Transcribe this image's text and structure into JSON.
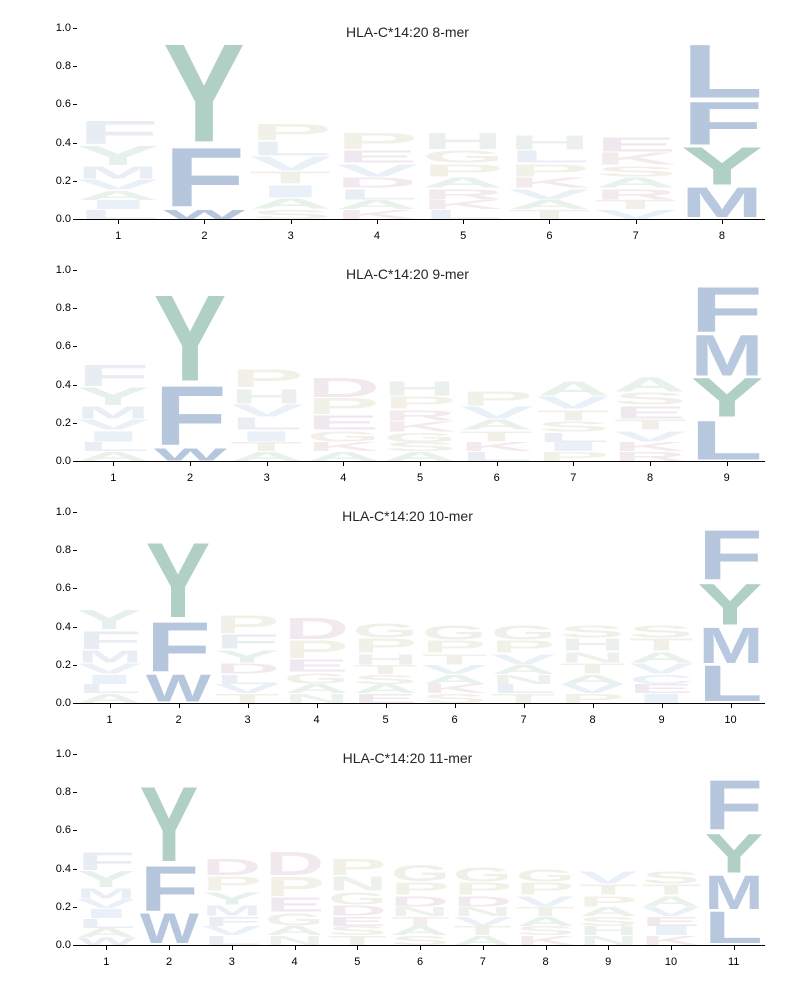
{
  "ylim": [
    0,
    1.0
  ],
  "yticks": [
    0.0,
    0.2,
    0.4,
    0.6,
    0.8,
    1.0
  ],
  "tick_fontsize": 11,
  "title_fontsize": 14,
  "title_color": "#262626",
  "background_color": "#ffffff",
  "aa_colors": {
    "A": "#bad4c0",
    "C": "#bcd0e8",
    "D": "#d6b8cc",
    "E": "#cbb4cd",
    "F": "#b6c7dd",
    "G": "#d0d0b8",
    "H": "#bed1c3",
    "I": "#bacfe5",
    "K": "#d6bcc0",
    "L": "#b7c8de",
    "M": "#b8c9df",
    "N": "#c4d4c3",
    "P": "#d3d2b4",
    "Q": "#c3d3c2",
    "R": "#d7bdc1",
    "S": "#cfcfb7",
    "T": "#cfcfb7",
    "V": "#bacfe5",
    "W": "#b6c7dd",
    "Y": "#b0d0c5"
  },
  "anchor_opacity": 1.0,
  "nonanchor_opacity": 0.3,
  "panels": [
    {
      "title": "HLA-C*14:20 8-mer",
      "positions": 8,
      "anchors": [
        2,
        8
      ],
      "columns": [
        [
          [
            "F",
            0.13
          ],
          [
            "Y",
            0.11
          ],
          [
            "M",
            0.07
          ],
          [
            "V",
            0.06
          ],
          [
            "A",
            0.05
          ],
          [
            "I",
            0.05
          ],
          [
            "L",
            0.05
          ]
        ],
        [
          [
            "Y",
            0.55
          ],
          [
            "F",
            0.33
          ],
          [
            "W",
            0.05
          ]
        ],
        [
          [
            "P",
            0.09
          ],
          [
            "L",
            0.08
          ],
          [
            "V",
            0.08
          ],
          [
            "T",
            0.07
          ],
          [
            "I",
            0.07
          ],
          [
            "A",
            0.06
          ],
          [
            "S",
            0.05
          ]
        ],
        [
          [
            "P",
            0.09
          ],
          [
            "E",
            0.07
          ],
          [
            "V",
            0.07
          ],
          [
            "D",
            0.06
          ],
          [
            "L",
            0.06
          ],
          [
            "A",
            0.05
          ],
          [
            "K",
            0.05
          ]
        ],
        [
          [
            "H",
            0.09
          ],
          [
            "G",
            0.07
          ],
          [
            "P",
            0.07
          ],
          [
            "A",
            0.06
          ],
          [
            "R",
            0.06
          ],
          [
            "K",
            0.05
          ],
          [
            "L",
            0.05
          ]
        ],
        [
          [
            "H",
            0.08
          ],
          [
            "L",
            0.07
          ],
          [
            "P",
            0.07
          ],
          [
            "K",
            0.06
          ],
          [
            "V",
            0.06
          ],
          [
            "A",
            0.05
          ],
          [
            "T",
            0.05
          ]
        ],
        [
          [
            "E",
            0.08
          ],
          [
            "K",
            0.07
          ],
          [
            "S",
            0.06
          ],
          [
            "A",
            0.06
          ],
          [
            "R",
            0.06
          ],
          [
            "T",
            0.05
          ],
          [
            "V",
            0.05
          ]
        ],
        [
          [
            "L",
            0.3
          ],
          [
            "F",
            0.24
          ],
          [
            "Y",
            0.21
          ],
          [
            "M",
            0.17
          ]
        ]
      ]
    },
    {
      "title": "HLA-C*14:20 9-mer",
      "positions": 9,
      "anchors": [
        2,
        9
      ],
      "columns": [
        [
          [
            "F",
            0.12
          ],
          [
            "Y",
            0.1
          ],
          [
            "M",
            0.07
          ],
          [
            "V",
            0.06
          ],
          [
            "I",
            0.06
          ],
          [
            "L",
            0.05
          ],
          [
            "A",
            0.05
          ]
        ],
        [
          [
            "Y",
            0.48
          ],
          [
            "F",
            0.33
          ],
          [
            "W",
            0.07
          ]
        ],
        [
          [
            "P",
            0.1
          ],
          [
            "H",
            0.08
          ],
          [
            "V",
            0.07
          ],
          [
            "L",
            0.07
          ],
          [
            "I",
            0.06
          ],
          [
            "T",
            0.05
          ],
          [
            "A",
            0.05
          ]
        ],
        [
          [
            "D",
            0.11
          ],
          [
            "P",
            0.09
          ],
          [
            "E",
            0.08
          ],
          [
            "G",
            0.06
          ],
          [
            "K",
            0.05
          ],
          [
            "A",
            0.05
          ]
        ],
        [
          [
            "H",
            0.08
          ],
          [
            "P",
            0.07
          ],
          [
            "R",
            0.06
          ],
          [
            "K",
            0.06
          ],
          [
            "G",
            0.05
          ],
          [
            "S",
            0.05
          ],
          [
            "A",
            0.05
          ]
        ],
        [
          [
            "P",
            0.08
          ],
          [
            "V",
            0.07
          ],
          [
            "A",
            0.06
          ],
          [
            "T",
            0.06
          ],
          [
            "K",
            0.05
          ],
          [
            "L",
            0.05
          ]
        ],
        [
          [
            "A",
            0.08
          ],
          [
            "V",
            0.07
          ],
          [
            "T",
            0.06
          ],
          [
            "S",
            0.06
          ],
          [
            "L",
            0.05
          ],
          [
            "I",
            0.05
          ],
          [
            "P",
            0.05
          ]
        ],
        [
          [
            "A",
            0.08
          ],
          [
            "S",
            0.07
          ],
          [
            "E",
            0.07
          ],
          [
            "T",
            0.06
          ],
          [
            "V",
            0.06
          ],
          [
            "K",
            0.05
          ],
          [
            "R",
            0.05
          ]
        ],
        [
          [
            "F",
            0.25
          ],
          [
            "M",
            0.23
          ],
          [
            "Y",
            0.22
          ],
          [
            "L",
            0.22
          ]
        ]
      ]
    },
    {
      "title": "HLA-C*14:20 10-mer",
      "positions": 10,
      "anchors": [
        2,
        10
      ],
      "columns": [
        [
          [
            "Y",
            0.11
          ],
          [
            "F",
            0.1
          ],
          [
            "M",
            0.07
          ],
          [
            "V",
            0.06
          ],
          [
            "I",
            0.05
          ],
          [
            "L",
            0.05
          ],
          [
            "A",
            0.05
          ]
        ],
        [
          [
            "Y",
            0.42
          ],
          [
            "F",
            0.28
          ],
          [
            "W",
            0.15
          ]
        ],
        [
          [
            "P",
            0.1
          ],
          [
            "F",
            0.08
          ],
          [
            "Y",
            0.07
          ],
          [
            "D",
            0.06
          ],
          [
            "L",
            0.05
          ],
          [
            "V",
            0.05
          ],
          [
            "T",
            0.05
          ]
        ],
        [
          [
            "D",
            0.12
          ],
          [
            "P",
            0.1
          ],
          [
            "E",
            0.07
          ],
          [
            "G",
            0.06
          ],
          [
            "A",
            0.05
          ],
          [
            "N",
            0.05
          ]
        ],
        [
          [
            "G",
            0.08
          ],
          [
            "P",
            0.08
          ],
          [
            "H",
            0.06
          ],
          [
            "T",
            0.05
          ],
          [
            "S",
            0.05
          ],
          [
            "A",
            0.05
          ],
          [
            "E",
            0.05
          ]
        ],
        [
          [
            "G",
            0.08
          ],
          [
            "P",
            0.07
          ],
          [
            "T",
            0.06
          ],
          [
            "V",
            0.05
          ],
          [
            "A",
            0.05
          ],
          [
            "K",
            0.05
          ],
          [
            "S",
            0.05
          ]
        ],
        [
          [
            "G",
            0.08
          ],
          [
            "P",
            0.07
          ],
          [
            "V",
            0.06
          ],
          [
            "A",
            0.05
          ],
          [
            "N",
            0.05
          ],
          [
            "L",
            0.05
          ],
          [
            "T",
            0.05
          ]
        ],
        [
          [
            "S",
            0.07
          ],
          [
            "H",
            0.07
          ],
          [
            "N",
            0.06
          ],
          [
            "T",
            0.06
          ],
          [
            "A",
            0.05
          ],
          [
            "V",
            0.05
          ],
          [
            "P",
            0.05
          ]
        ],
        [
          [
            "S",
            0.07
          ],
          [
            "T",
            0.07
          ],
          [
            "A",
            0.06
          ],
          [
            "V",
            0.06
          ],
          [
            "C",
            0.05
          ],
          [
            "E",
            0.05
          ],
          [
            "I",
            0.05
          ]
        ],
        [
          [
            "F",
            0.28
          ],
          [
            "Y",
            0.23
          ],
          [
            "M",
            0.2
          ],
          [
            "L",
            0.2
          ]
        ]
      ]
    },
    {
      "title": "HLA-C*14:20 11-mer",
      "positions": 11,
      "anchors": [
        2,
        11
      ],
      "columns": [
        [
          [
            "F",
            0.1
          ],
          [
            "Y",
            0.09
          ],
          [
            "M",
            0.06
          ],
          [
            "V",
            0.05
          ],
          [
            "I",
            0.05
          ],
          [
            "L",
            0.05
          ],
          [
            "A",
            0.05
          ],
          [
            "W",
            0.04
          ]
        ],
        [
          [
            "Y",
            0.42
          ],
          [
            "F",
            0.25
          ],
          [
            "W",
            0.17
          ]
        ],
        [
          [
            "D",
            0.09
          ],
          [
            "P",
            0.08
          ],
          [
            "Y",
            0.07
          ],
          [
            "M",
            0.06
          ],
          [
            "F",
            0.05
          ],
          [
            "V",
            0.05
          ],
          [
            "L",
            0.05
          ]
        ],
        [
          [
            "D",
            0.13
          ],
          [
            "P",
            0.11
          ],
          [
            "E",
            0.08
          ],
          [
            "G",
            0.07
          ],
          [
            "A",
            0.05
          ],
          [
            "N",
            0.05
          ]
        ],
        [
          [
            "P",
            0.09
          ],
          [
            "N",
            0.08
          ],
          [
            "G",
            0.07
          ],
          [
            "D",
            0.06
          ],
          [
            "E",
            0.05
          ],
          [
            "S",
            0.05
          ],
          [
            "T",
            0.05
          ]
        ],
        [
          [
            "G",
            0.09
          ],
          [
            "P",
            0.07
          ],
          [
            "D",
            0.06
          ],
          [
            "N",
            0.05
          ],
          [
            "T",
            0.05
          ],
          [
            "A",
            0.05
          ],
          [
            "S",
            0.05
          ]
        ],
        [
          [
            "G",
            0.08
          ],
          [
            "P",
            0.07
          ],
          [
            "D",
            0.06
          ],
          [
            "N",
            0.05
          ],
          [
            "V",
            0.05
          ],
          [
            "T",
            0.05
          ],
          [
            "A",
            0.05
          ]
        ],
        [
          [
            "G",
            0.07
          ],
          [
            "P",
            0.07
          ],
          [
            "V",
            0.06
          ],
          [
            "T",
            0.05
          ],
          [
            "A",
            0.05
          ],
          [
            "S",
            0.05
          ],
          [
            "K",
            0.05
          ]
        ],
        [
          [
            "V",
            0.07
          ],
          [
            "T",
            0.06
          ],
          [
            "P",
            0.06
          ],
          [
            "A",
            0.05
          ],
          [
            "S",
            0.05
          ],
          [
            "H",
            0.05
          ],
          [
            "N",
            0.05
          ]
        ],
        [
          [
            "S",
            0.07
          ],
          [
            "T",
            0.06
          ],
          [
            "A",
            0.06
          ],
          [
            "V",
            0.05
          ],
          [
            "E",
            0.05
          ],
          [
            "I",
            0.05
          ],
          [
            "K",
            0.05
          ]
        ],
        [
          [
            "F",
            0.28
          ],
          [
            "Y",
            0.22
          ],
          [
            "M",
            0.19
          ],
          [
            "L",
            0.18
          ]
        ]
      ]
    }
  ]
}
